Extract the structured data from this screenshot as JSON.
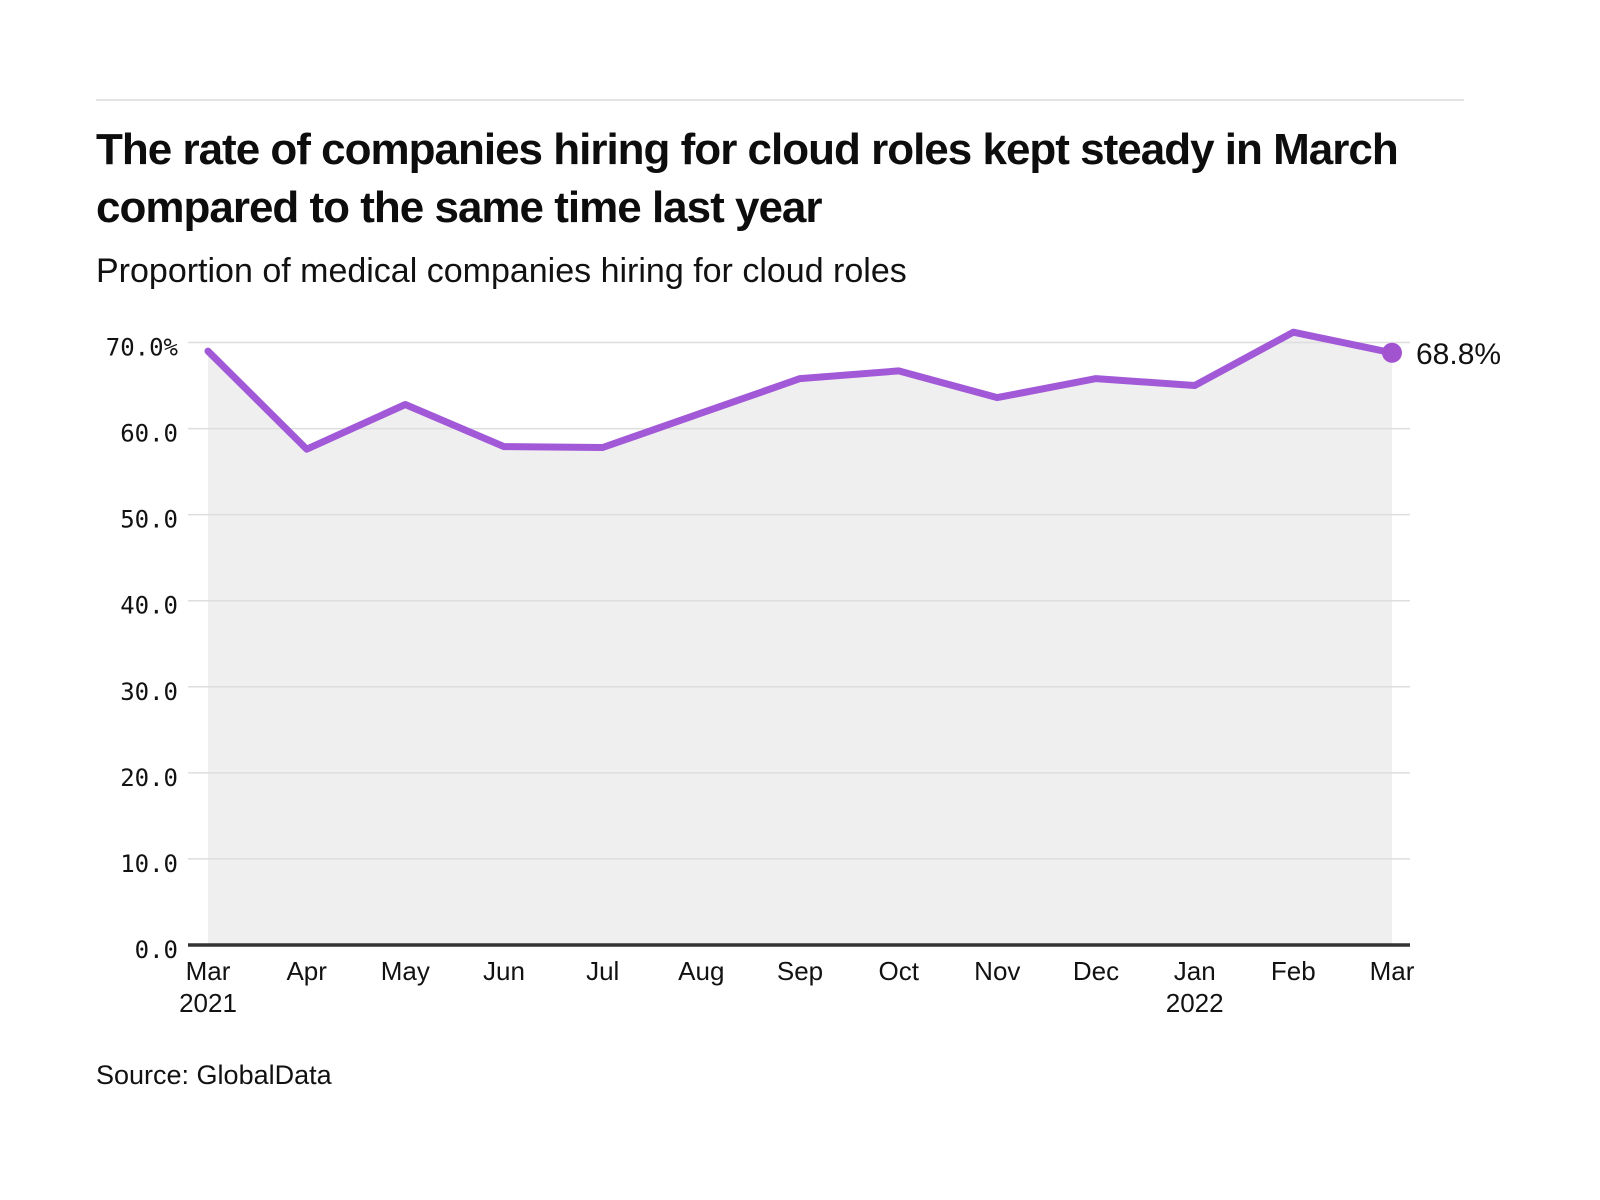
{
  "page": {
    "title": "The rate of companies hiring for cloud roles kept steady in March compared to the same time last year",
    "subtitle": "Proportion of medical companies hiring for cloud roles",
    "source": "Source: GlobalData"
  },
  "colors": {
    "line": "#a259d8",
    "dot": "#a253cf",
    "area_fill": "#efefef",
    "gridline": "#dedede",
    "axis": "#333333",
    "text": "#121212",
    "rule": "#e3e3e3"
  },
  "chart_data": {
    "type": "line",
    "title": "Proportion of medical companies hiring for cloud roles",
    "xlabel": "",
    "ylabel": "",
    "categories": [
      "Mar",
      "Apr",
      "May",
      "Jun",
      "Jul",
      "Aug",
      "Sep",
      "Oct",
      "Nov",
      "Dec",
      "Jan",
      "Feb",
      "Mar"
    ],
    "category_sublabels": [
      {
        "index": 0,
        "text": "2021"
      },
      {
        "index": 10,
        "text": "2022"
      }
    ],
    "series": [
      {
        "name": "Proportion of medical companies hiring for cloud roles",
        "values": [
          69.0,
          57.6,
          62.8,
          57.9,
          57.8,
          61.8,
          65.8,
          66.7,
          63.6,
          65.8,
          65.0,
          71.2,
          68.8
        ]
      }
    ],
    "ylim": [
      0,
      70
    ],
    "yticks": {
      "values": [
        70,
        60,
        50,
        40,
        30,
        20,
        10,
        0
      ],
      "labels": [
        "70.0%",
        "60.0",
        "50.0",
        "40.0",
        "30.0",
        "20.0",
        "10.0",
        "0.0"
      ]
    },
    "end_label": "68.8%",
    "grid": "horizontal",
    "legend": "none",
    "area_filled": true
  }
}
